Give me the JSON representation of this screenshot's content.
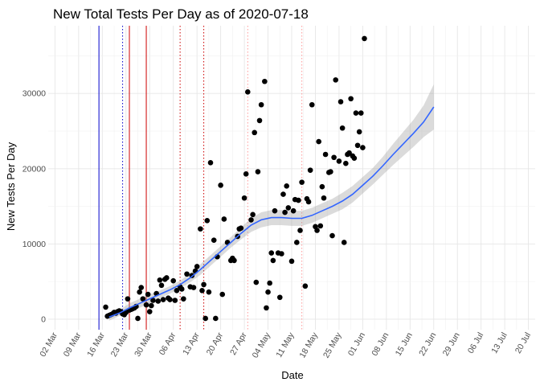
{
  "chart_data": {
    "type": "scatter",
    "title": "New Total Tests Per Day as of 2020-07-18",
    "xlabel": "Date",
    "ylabel": "New Tests Per Day",
    "x_unit": "days since 2020-03-01",
    "xlim": [
      -1,
      143
    ],
    "ylim": [
      -1400,
      39000
    ],
    "x_ticks": [
      {
        "x": 1,
        "label": "02 Mar"
      },
      {
        "x": 8,
        "label": "09 Mar"
      },
      {
        "x": 15,
        "label": "16 Mar"
      },
      {
        "x": 22,
        "label": "23 Mar"
      },
      {
        "x": 29,
        "label": "30 Mar"
      },
      {
        "x": 36,
        "label": "06 Apr"
      },
      {
        "x": 43,
        "label": "13 Apr"
      },
      {
        "x": 50,
        "label": "20 Apr"
      },
      {
        "x": 57,
        "label": "27 Apr"
      },
      {
        "x": 64,
        "label": "04 May"
      },
      {
        "x": 71,
        "label": "11 May"
      },
      {
        "x": 78,
        "label": "18 May"
      },
      {
        "x": 85,
        "label": "25 May"
      },
      {
        "x": 92,
        "label": "01 Jun"
      },
      {
        "x": 99,
        "label": "08 Jun"
      },
      {
        "x": 106,
        "label": "15 Jun"
      },
      {
        "x": 113,
        "label": "22 Jun"
      },
      {
        "x": 120,
        "label": "29 Jun"
      },
      {
        "x": 127,
        "label": "06 Jul"
      },
      {
        "x": 134,
        "label": "13 Jul"
      },
      {
        "x": 141,
        "label": "20 Jul"
      }
    ],
    "y_ticks": [
      {
        "y": 0,
        "label": "0"
      },
      {
        "y": 10000,
        "label": "10000"
      },
      {
        "y": 20000,
        "label": "20000"
      },
      {
        "y": 30000,
        "label": "30000"
      }
    ],
    "vlines": [
      {
        "x": 14,
        "color": "#0000cc",
        "style": "solid"
      },
      {
        "x": 21,
        "color": "#0000cc",
        "style": "dotted"
      },
      {
        "x": 23,
        "color": "#cc0000",
        "style": "solid"
      },
      {
        "x": 28,
        "color": "#cc0000",
        "style": "solid"
      },
      {
        "x": 38,
        "color": "#cc0000",
        "style": "dotted"
      },
      {
        "x": 45,
        "color": "#cc0000",
        "style": "dotted"
      },
      {
        "x": 58,
        "color": "#ff9999",
        "style": "dotted"
      },
      {
        "x": 74,
        "color": "#ff9999",
        "style": "dotted"
      }
    ],
    "points": [
      [
        16,
        1600
      ],
      [
        16.5,
        400
      ],
      [
        17,
        500
      ],
      [
        17.5,
        600
      ],
      [
        18,
        700
      ],
      [
        18.5,
        900
      ],
      [
        19,
        800
      ],
      [
        19.5,
        1000
      ],
      [
        20,
        1100
      ],
      [
        20.5,
        1000
      ],
      [
        21,
        700
      ],
      [
        21.5,
        600
      ],
      [
        22,
        900
      ],
      [
        22.5,
        2700
      ],
      [
        23,
        1200
      ],
      [
        23.5,
        1300
      ],
      [
        24,
        1400
      ],
      [
        24.5,
        1500
      ],
      [
        25,
        1700
      ],
      [
        25.5,
        100
      ],
      [
        26,
        3600
      ],
      [
        26.5,
        4200
      ],
      [
        27,
        2700
      ],
      [
        28,
        1900
      ],
      [
        28.5,
        3300
      ],
      [
        29,
        1000
      ],
      [
        29.5,
        1800
      ],
      [
        30,
        2500
      ],
      [
        31,
        3400
      ],
      [
        31.5,
        2400
      ],
      [
        32,
        5200
      ],
      [
        32.5,
        4500
      ],
      [
        33,
        2600
      ],
      [
        33.5,
        5300
      ],
      [
        34,
        5500
      ],
      [
        34.5,
        2800
      ],
      [
        35,
        2600
      ],
      [
        36,
        5100
      ],
      [
        36.5,
        2500
      ],
      [
        37,
        3800
      ],
      [
        38,
        4300
      ],
      [
        38.5,
        4000
      ],
      [
        39,
        2700
      ],
      [
        40,
        6000
      ],
      [
        41,
        4300
      ],
      [
        41.5,
        5800
      ],
      [
        42,
        4200
      ],
      [
        42.5,
        6400
      ],
      [
        43,
        7000
      ],
      [
        44,
        12000
      ],
      [
        44.5,
        3800
      ],
      [
        45,
        4600
      ],
      [
        45.5,
        100
      ],
      [
        46,
        13100
      ],
      [
        46.5,
        3600
      ],
      [
        47,
        20800
      ],
      [
        48,
        10500
      ],
      [
        48.5,
        100
      ],
      [
        49,
        8300
      ],
      [
        50,
        17800
      ],
      [
        50.5,
        3300
      ],
      [
        51,
        13300
      ],
      [
        52,
        10200
      ],
      [
        53,
        7800
      ],
      [
        53.5,
        8100
      ],
      [
        54,
        7800
      ],
      [
        55,
        11000
      ],
      [
        55.5,
        12000
      ],
      [
        56,
        12100
      ],
      [
        57,
        16100
      ],
      [
        57.5,
        19300
      ],
      [
        58,
        30200
      ],
      [
        59,
        13200
      ],
      [
        59.5,
        13900
      ],
      [
        60,
        24800
      ],
      [
        60.5,
        4900
      ],
      [
        61,
        19600
      ],
      [
        61.5,
        26400
      ],
      [
        62,
        28500
      ],
      [
        63,
        31600
      ],
      [
        63.5,
        1500
      ],
      [
        64,
        3600
      ],
      [
        64.5,
        4800
      ],
      [
        65,
        8800
      ],
      [
        65.5,
        7800
      ],
      [
        66,
        14400
      ],
      [
        67,
        8800
      ],
      [
        67.5,
        2900
      ],
      [
        68,
        8700
      ],
      [
        68.5,
        16600
      ],
      [
        69,
        14200
      ],
      [
        69.5,
        17700
      ],
      [
        70,
        14800
      ],
      [
        71,
        7700
      ],
      [
        71.5,
        14400
      ],
      [
        72,
        15900
      ],
      [
        72.5,
        10200
      ],
      [
        73,
        15800
      ],
      [
        73.5,
        11800
      ],
      [
        74,
        18200
      ],
      [
        75,
        4400
      ],
      [
        75.5,
        16000
      ],
      [
        76,
        15600
      ],
      [
        76.5,
        19800
      ],
      [
        77,
        28500
      ],
      [
        78,
        12300
      ],
      [
        78.5,
        11800
      ],
      [
        79,
        23600
      ],
      [
        79.5,
        12400
      ],
      [
        80,
        17600
      ],
      [
        80.5,
        16100
      ],
      [
        81,
        21900
      ],
      [
        82,
        19500
      ],
      [
        82.5,
        19600
      ],
      [
        83,
        11100
      ],
      [
        83.5,
        21500
      ],
      [
        84,
        31800
      ],
      [
        85,
        21000
      ],
      [
        85.5,
        28900
      ],
      [
        86,
        25400
      ],
      [
        86.5,
        10200
      ],
      [
        87,
        20700
      ],
      [
        87.5,
        21900
      ],
      [
        88,
        22100
      ],
      [
        88.5,
        29300
      ],
      [
        89,
        21700
      ],
      [
        89.5,
        21400
      ],
      [
        90,
        27400
      ],
      [
        90.5,
        23100
      ],
      [
        91,
        24900
      ],
      [
        91.5,
        27400
      ],
      [
        92,
        22800
      ],
      [
        92.5,
        37300
      ]
    ],
    "smooth_line": [
      [
        17,
        280
      ],
      [
        20,
        800
      ],
      [
        23,
        1500
      ],
      [
        26,
        2100
      ],
      [
        29,
        2700
      ],
      [
        32,
        3300
      ],
      [
        35,
        3900
      ],
      [
        38,
        4600
      ],
      [
        41,
        5500
      ],
      [
        44,
        6600
      ],
      [
        47,
        7800
      ],
      [
        50,
        9000
      ],
      [
        53,
        10200
      ],
      [
        56,
        11400
      ],
      [
        59,
        12500
      ],
      [
        62,
        13200
      ],
      [
        65,
        13500
      ],
      [
        68,
        13500
      ],
      [
        71,
        13400
      ],
      [
        74,
        13400
      ],
      [
        77,
        13800
      ],
      [
        80,
        14400
      ],
      [
        83,
        15000
      ],
      [
        86,
        15700
      ],
      [
        89,
        16600
      ],
      [
        92,
        17800
      ],
      [
        95,
        19000
      ],
      [
        98,
        20400
      ],
      [
        101,
        21900
      ],
      [
        104,
        23300
      ],
      [
        107,
        24700
      ],
      [
        110,
        26200
      ],
      [
        113,
        28200
      ]
    ],
    "confidence_band": [
      [
        17,
        -200,
        800
      ],
      [
        20,
        400,
        1200
      ],
      [
        23,
        900,
        2100
      ],
      [
        26,
        1500,
        2700
      ],
      [
        29,
        2100,
        3300
      ],
      [
        32,
        2800,
        3800
      ],
      [
        35,
        3400,
        4400
      ],
      [
        38,
        4100,
        5100
      ],
      [
        41,
        4900,
        6100
      ],
      [
        44,
        5900,
        7300
      ],
      [
        47,
        7100,
        8500
      ],
      [
        50,
        8300,
        9700
      ],
      [
        53,
        9500,
        10900
      ],
      [
        56,
        10600,
        12200
      ],
      [
        59,
        11600,
        13400
      ],
      [
        62,
        12200,
        14200
      ],
      [
        65,
        12500,
        14500
      ],
      [
        68,
        12500,
        14500
      ],
      [
        71,
        12400,
        14400
      ],
      [
        74,
        12400,
        14400
      ],
      [
        77,
        12800,
        14800
      ],
      [
        80,
        13400,
        15400
      ],
      [
        83,
        14000,
        16000
      ],
      [
        86,
        14600,
        16800
      ],
      [
        89,
        15500,
        17700
      ],
      [
        92,
        16700,
        18900
      ],
      [
        95,
        17900,
        20100
      ],
      [
        98,
        19200,
        21600
      ],
      [
        101,
        20500,
        23300
      ],
      [
        104,
        21700,
        24900
      ],
      [
        107,
        22900,
        26500
      ],
      [
        110,
        24200,
        28400
      ],
      [
        113,
        25200,
        31200
      ]
    ]
  }
}
